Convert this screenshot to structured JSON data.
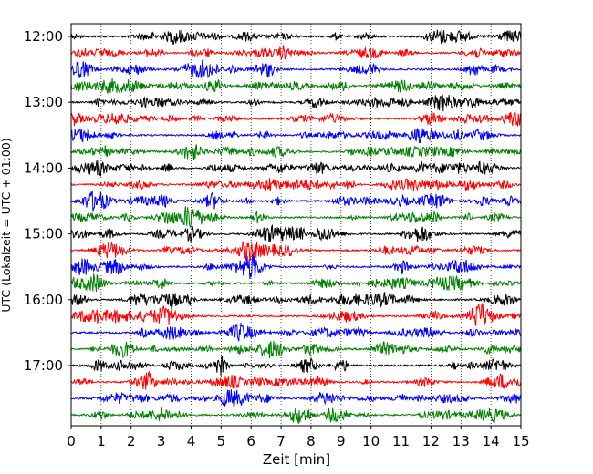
{
  "chart_data": {
    "type": "line",
    "xlabel": "Zeit  [min]",
    "ylabel": "UTC (Lokalzeit = UTC + 01:00)",
    "xlim": [
      0,
      15
    ],
    "x_ticks": [
      "0",
      "1",
      "2",
      "3",
      "4",
      "5",
      "6",
      "7",
      "8",
      "9",
      "10",
      "11",
      "12",
      "13",
      "14",
      "15"
    ],
    "y_ticks": [
      "12:00",
      "13:00",
      "14:00",
      "15:00",
      "16:00",
      "17:00"
    ],
    "trace_interval_minutes": 15,
    "start_time": "12:00",
    "trace_count": 24,
    "trace_colors": [
      "#000000",
      "#ff0000",
      "#0000ff",
      "#008000"
    ],
    "grid": "vertical dotted",
    "legend": "none"
  }
}
